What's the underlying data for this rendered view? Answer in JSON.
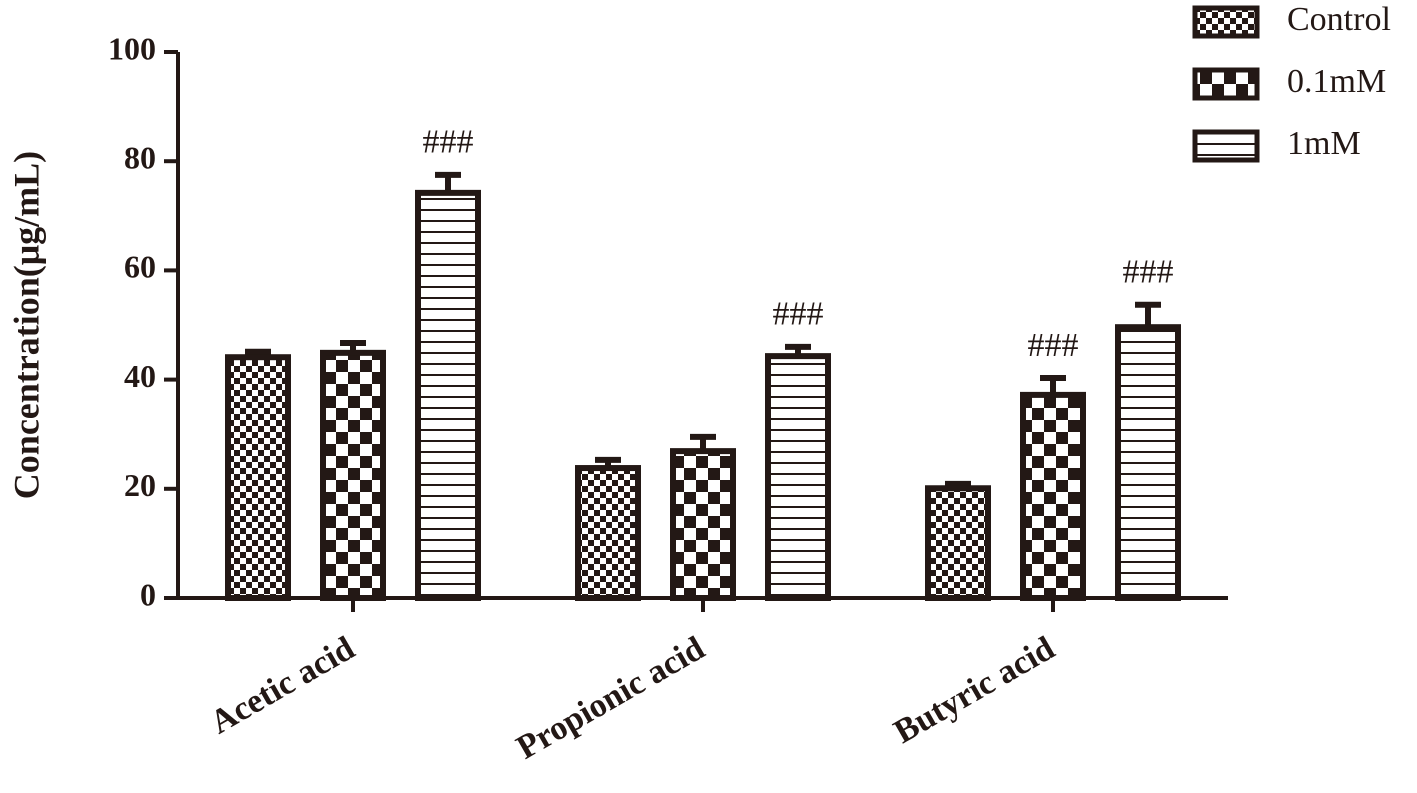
{
  "chart_data": {
    "type": "bar",
    "ylabel": "Concentration(μg/mL)",
    "categories": [
      "Acetic acid",
      "Propionic acid",
      "Butyric acid"
    ],
    "series": [
      {
        "name": "Control",
        "color": "#231815",
        "pattern": "fine-checker",
        "values": [
          44.1,
          23.8,
          20.1
        ],
        "errors": [
          1.0,
          1.5,
          0.8
        ],
        "annotations": [
          null,
          null,
          null
        ]
      },
      {
        "name": "0.1mM",
        "color": "#231815",
        "pattern": "coarse-checker",
        "values": [
          44.9,
          26.9,
          37.2
        ],
        "errors": [
          1.8,
          2.6,
          3.1
        ],
        "annotations": [
          null,
          null,
          "###"
        ]
      },
      {
        "name": "1mM",
        "color": "#231815",
        "pattern": "stripes",
        "values": [
          74.2,
          44.3,
          49.6
        ],
        "errors": [
          3.3,
          1.7,
          4.1
        ],
        "annotations": [
          "###",
          "###",
          "###"
        ]
      }
    ],
    "ylim": [
      0,
      100
    ],
    "yticks": [
      0,
      20,
      40,
      60,
      80,
      100
    ],
    "grid": false,
    "legend": "top-right"
  }
}
